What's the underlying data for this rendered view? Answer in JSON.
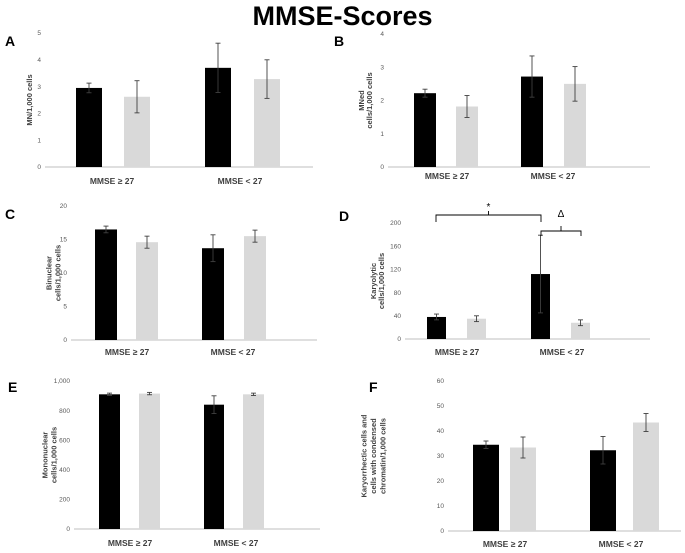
{
  "title": "MMSE-Scores",
  "colors": {
    "group1": "#000000",
    "group2": "#d9d9d9",
    "axis": "#bfbfbf",
    "error": "#404040"
  },
  "chart_data": [
    {
      "panel": "A",
      "type": "bar",
      "categories": [
        "MMSE ≥ 27",
        "MMSE < 27"
      ],
      "series": [
        {
          "values": [
            2.95,
            3.7
          ]
        },
        {
          "values": [
            2.62,
            3.28
          ]
        }
      ],
      "errors": [
        [
          0.18,
          0.92
        ],
        [
          0.6,
          0.72
        ]
      ],
      "ylabel": "MN/1,000 cells",
      "ylim": [
        0,
        5
      ],
      "yticks": [
        0,
        1,
        2,
        3,
        4,
        5
      ],
      "ytick_labels": [
        "0",
        "1",
        "2",
        "3",
        "4",
        "5"
      ]
    },
    {
      "panel": "B",
      "type": "bar",
      "categories": [
        "MMSE ≥ 27",
        "MMSE < 27"
      ],
      "series": [
        {
          "values": [
            2.22,
            2.72
          ]
        },
        {
          "values": [
            1.82,
            2.5
          ]
        }
      ],
      "errors": [
        [
          0.12,
          0.62
        ],
        [
          0.33,
          0.52
        ]
      ],
      "ylabel": "MNed cells/1,000 cells",
      "ylabel_lines": [
        "MNed",
        "cells/1,000 cells"
      ],
      "ylim": [
        0,
        4
      ],
      "yticks": [
        0,
        1,
        2,
        3,
        4
      ],
      "ytick_labels": [
        "0",
        "1",
        "2",
        "3",
        "4"
      ]
    },
    {
      "panel": "C",
      "type": "bar",
      "categories": [
        "MMSE ≥ 27",
        "MMSE < 27"
      ],
      "series": [
        {
          "values": [
            16.5,
            13.7
          ]
        },
        {
          "values": [
            14.6,
            15.5
          ]
        }
      ],
      "errors": [
        [
          0.5,
          2.0
        ],
        [
          0.9,
          0.9
        ]
      ],
      "ylabel": "Binuclear cells/1,000 cells",
      "ylabel_lines": [
        "Binuclear",
        "cells/1,000 cells"
      ],
      "ylim": [
        0,
        20
      ],
      "yticks": [
        0,
        5,
        10,
        15,
        20
      ],
      "ytick_labels": [
        "0",
        "5",
        "10",
        "15",
        "20"
      ]
    },
    {
      "panel": "D",
      "type": "bar",
      "categories": [
        "MMSE ≥ 27",
        "MMSE < 27"
      ],
      "series": [
        {
          "values": [
            38,
            112
          ]
        },
        {
          "values": [
            35,
            28
          ]
        }
      ],
      "errors": [
        [
          5,
          67
        ],
        [
          5,
          5
        ]
      ],
      "ylabel": "Karyolytic cells/1,000 cells",
      "ylabel_lines": [
        "Karyolytic",
        "cells/1,000 cells"
      ],
      "ylim": [
        0,
        200
      ],
      "yticks": [
        0,
        40,
        80,
        120,
        160,
        200
      ],
      "ytick_labels": [
        "0",
        "40",
        "80",
        "120",
        "160",
        "200"
      ],
      "annotations": [
        "*",
        "Δ"
      ]
    },
    {
      "panel": "E",
      "type": "bar",
      "categories": [
        "MMSE ≥ 27",
        "MMSE < 27"
      ],
      "series": [
        {
          "values": [
            910,
            840
          ]
        },
        {
          "values": [
            915,
            910
          ]
        }
      ],
      "errors": [
        [
          8,
          60
        ],
        [
          8,
          8
        ]
      ],
      "ylabel": "Mononuclear cells/1,000 cells",
      "ylabel_lines": [
        "Mononuclear",
        "cells/1,000 cells"
      ],
      "ylim": [
        0,
        1000
      ],
      "yticks": [
        0,
        200,
        400,
        600,
        800,
        1000
      ],
      "ytick_labels": [
        "0",
        "200",
        "400",
        "600",
        "800",
        "1,000"
      ]
    },
    {
      "panel": "F",
      "type": "bar",
      "categories": [
        "MMSE ≥ 27",
        "MMSE < 27"
      ],
      "series": [
        {
          "values": [
            34.5,
            32.3
          ]
        },
        {
          "values": [
            33.4,
            43.4
          ]
        }
      ],
      "errors": [
        [
          1.5,
          5.5
        ],
        [
          4.2,
          3.6
        ]
      ],
      "ylabel": "Karyorrhectic cells and cells with condensed chromatin/1,000 cells",
      "ylabel_lines": [
        "Karyorrhectic cells and",
        "cells with condensed",
        "chromatin/1,000 cells"
      ],
      "ylim": [
        0,
        60
      ],
      "yticks": [
        0,
        10,
        20,
        30,
        40,
        50,
        60
      ],
      "ytick_labels": [
        "0",
        "10",
        "20",
        "30",
        "40",
        "50",
        "60"
      ]
    }
  ]
}
